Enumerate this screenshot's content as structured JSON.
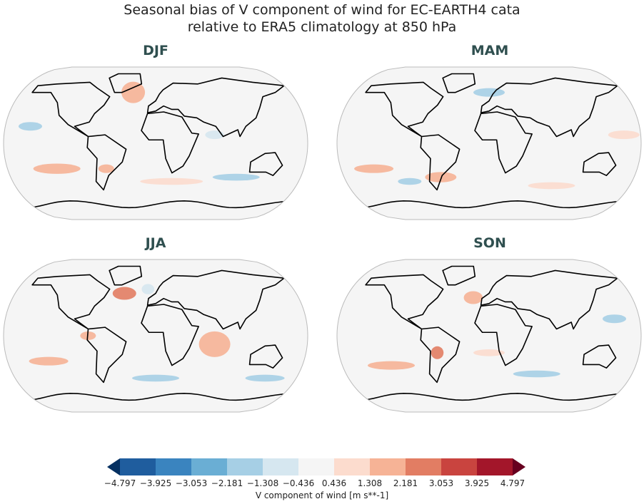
{
  "title_line1": "Seasonal bias of V component of wind for EC-EARTH4 cata",
  "title_line2": "relative to ERA5 climatology at 850 hPa",
  "panels": [
    {
      "label": "DJF"
    },
    {
      "label": "MAM"
    },
    {
      "label": "JJA"
    },
    {
      "label": "SON"
    }
  ],
  "colorbar": {
    "label": "V component of wind [m s**-1]",
    "ticks": [
      "−4.797",
      "−3.925",
      "−3.053",
      "−2.181",
      "−1.308",
      "−0.436",
      "0.436",
      "1.308",
      "2.181",
      "3.053",
      "3.925",
      "4.797"
    ],
    "colors": [
      "#1f5d9e",
      "#3a84bf",
      "#6aaed4",
      "#a6cfe5",
      "#d6e7f0",
      "#f5f5f5",
      "#fcdcce",
      "#f6b396",
      "#e27d63",
      "#c9443f",
      "#a3162a"
    ],
    "extend_low_color": "#053061",
    "extend_high_color": "#67001f",
    "extend": "both"
  }
}
